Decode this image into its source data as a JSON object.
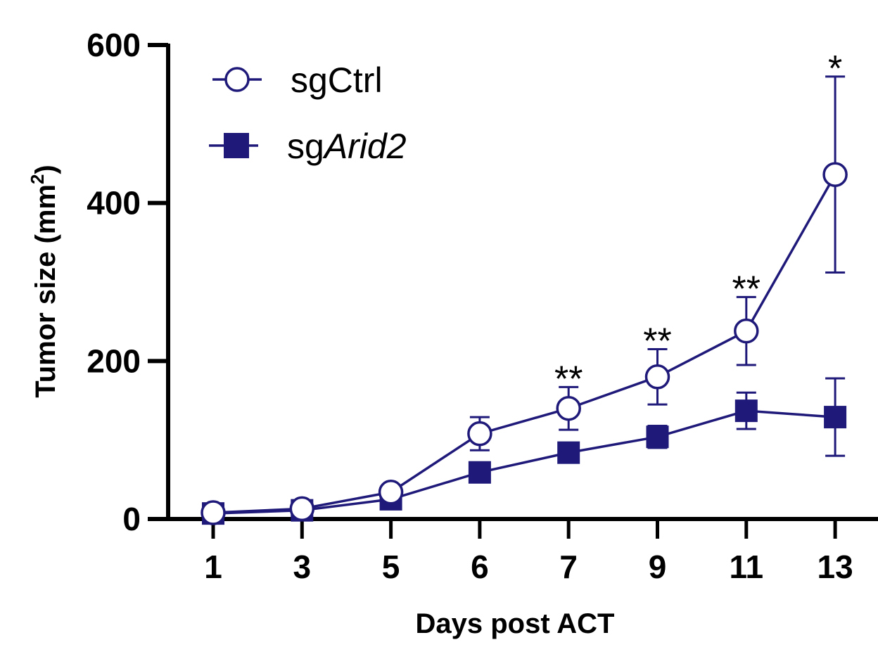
{
  "chart_data": {
    "type": "line",
    "xlabel": "Days post ACT",
    "ylabel_main": "Tumor size (mm",
    "ylabel_sup": "2",
    "ylabel_close": ")",
    "ylim": [
      0,
      600
    ],
    "yticks": [
      "0",
      "200",
      "400",
      "600"
    ],
    "x": [
      "1",
      "3",
      "5",
      "6",
      "7",
      "9",
      "11",
      "13"
    ],
    "series": [
      {
        "name": "sgCtrl",
        "marker": "open-circle",
        "color": "#1f1a7a",
        "values": [
          8,
          13,
          34,
          108,
          140,
          180,
          238,
          436
        ],
        "error": [
          3,
          4,
          5,
          21,
          27,
          35,
          43,
          124
        ]
      },
      {
        "name_prefix": "sg",
        "name_italic": "Arid2",
        "marker": "filled-square",
        "color": "#1f1a7a",
        "values": [
          7,
          11,
          25,
          59,
          84,
          104,
          137,
          129
        ],
        "error": [
          3,
          3,
          4,
          5,
          8,
          14,
          23,
          49
        ]
      }
    ],
    "significance": [
      {
        "x": "7",
        "label": "**"
      },
      {
        "x": "9",
        "label": "**"
      },
      {
        "x": "11",
        "label": "**"
      },
      {
        "x": "13",
        "label": "*"
      }
    ],
    "legend_position": "top-left",
    "grid": false
  }
}
